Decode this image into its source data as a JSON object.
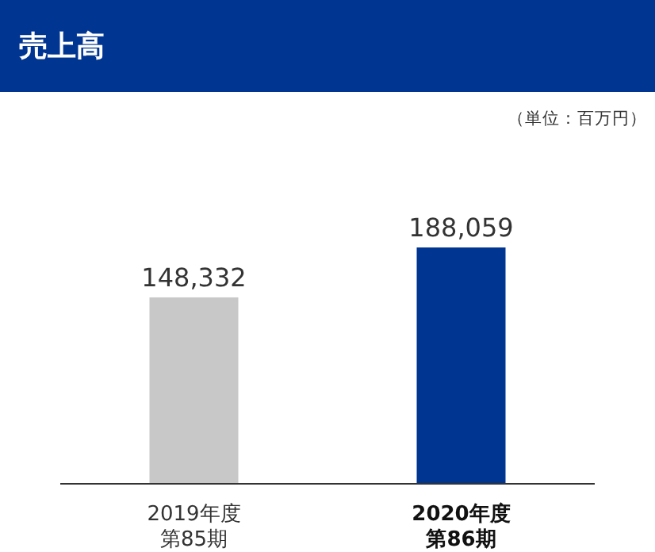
{
  "chart_data": {
    "type": "bar",
    "title": "売上高",
    "annotations": [
      "（単位：百万円）"
    ],
    "categories": [
      "2019年度第85期",
      "2020年度第86期"
    ],
    "values": [
      148332,
      188059
    ],
    "colors": [
      "#c8c8c8",
      "#003591"
    ],
    "value_labels": [
      "148,332",
      "188,059"
    ]
  }
}
